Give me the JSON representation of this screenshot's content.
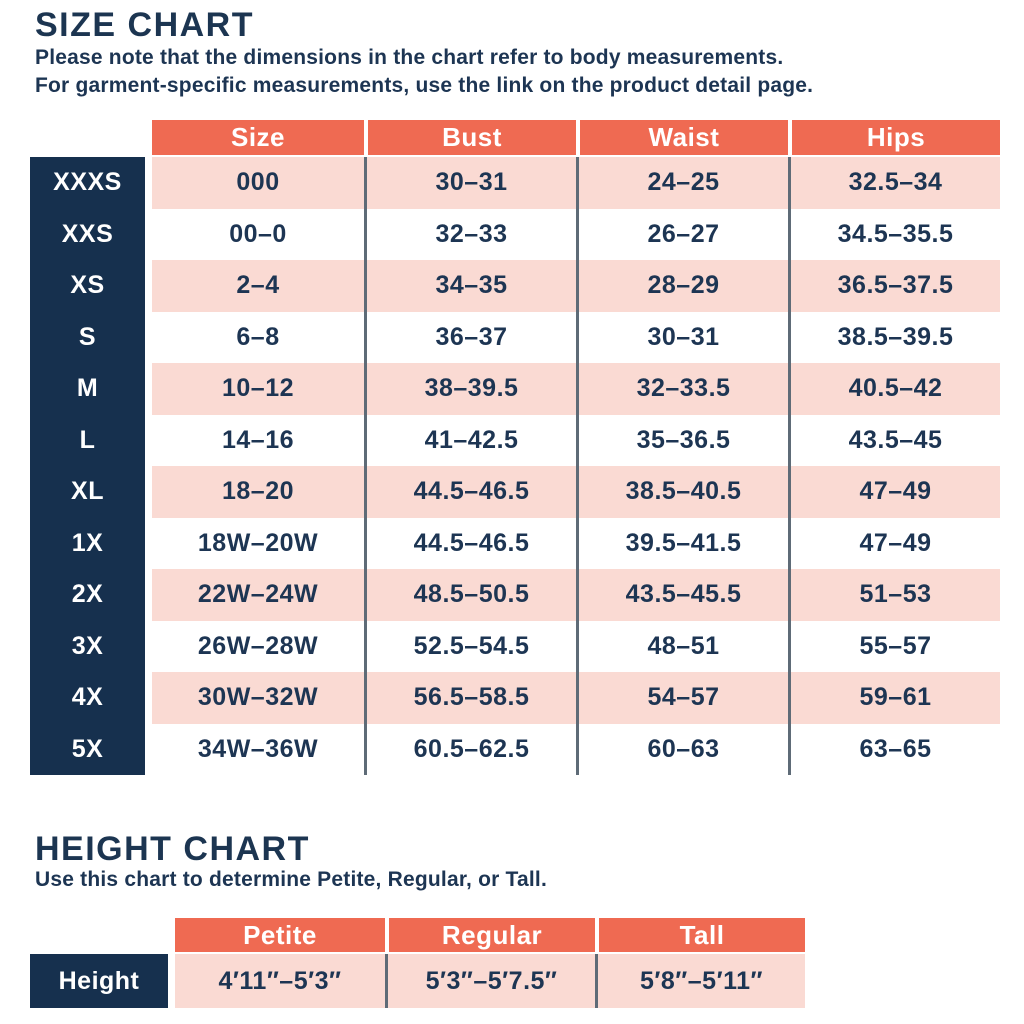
{
  "size_chart": {
    "title": "SIZE CHART",
    "note_line1": "Please note that the dimensions in the chart refer to body measurements.",
    "note_line2": "For garment-specific measurements, use the link on the product detail page.",
    "columns": [
      "Size",
      "Bust",
      "Waist",
      "Hips"
    ],
    "rows": [
      {
        "label": "XXXS",
        "size": "000",
        "bust": "30–31",
        "waist": "24–25",
        "hips": "32.5–34"
      },
      {
        "label": "XXS",
        "size": "00–0",
        "bust": "32–33",
        "waist": "26–27",
        "hips": "34.5–35.5"
      },
      {
        "label": "XS",
        "size": "2–4",
        "bust": "34–35",
        "waist": "28–29",
        "hips": "36.5–37.5"
      },
      {
        "label": "S",
        "size": "6–8",
        "bust": "36–37",
        "waist": "30–31",
        "hips": "38.5–39.5"
      },
      {
        "label": "M",
        "size": "10–12",
        "bust": "38–39.5",
        "waist": "32–33.5",
        "hips": "40.5–42"
      },
      {
        "label": "L",
        "size": "14–16",
        "bust": "41–42.5",
        "waist": "35–36.5",
        "hips": "43.5–45"
      },
      {
        "label": "XL",
        "size": "18–20",
        "bust": "44.5–46.5",
        "waist": "38.5–40.5",
        "hips": "47–49"
      },
      {
        "label": "1X",
        "size": "18W–20W",
        "bust": "44.5–46.5",
        "waist": "39.5–41.5",
        "hips": "47–49"
      },
      {
        "label": "2X",
        "size": "22W–24W",
        "bust": "48.5–50.5",
        "waist": "43.5–45.5",
        "hips": "51–53"
      },
      {
        "label": "3X",
        "size": "26W–28W",
        "bust": "52.5–54.5",
        "waist": "48–51",
        "hips": "55–57"
      },
      {
        "label": "4X",
        "size": "30W–32W",
        "bust": "56.5–58.5",
        "waist": "54–57",
        "hips": "59–61"
      },
      {
        "label": "5X",
        "size": "34W–36W",
        "bust": "60.5–62.5",
        "waist": "60–63",
        "hips": "63–65"
      }
    ]
  },
  "height_chart": {
    "title": "HEIGHT CHART",
    "note": "Use this chart to determine Petite, Regular, or Tall.",
    "columns": [
      "Petite",
      "Regular",
      "Tall"
    ],
    "row_label": "Height",
    "values": [
      "4′11″–5′3″",
      "5′3″–5′7.5″",
      "5′8″–5′11″"
    ]
  },
  "colors": {
    "header_orange": "#EF6A52",
    "row_pink": "#FADAD3",
    "label_navy": "#16304E",
    "text_navy": "#1D3553",
    "divider_gray": "#5E6B77",
    "header_text": "#FFFFFF"
  }
}
